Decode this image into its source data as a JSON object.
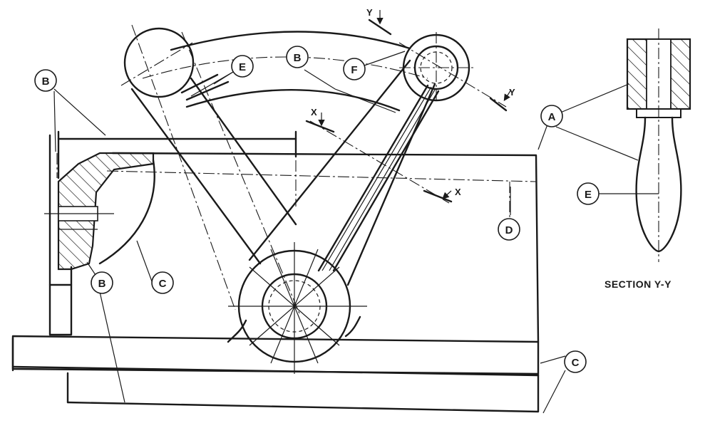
{
  "callouts": {
    "A": "A",
    "B": "B",
    "C": "C",
    "D": "D",
    "E": "E",
    "F": "F"
  },
  "section_marks": {
    "x": "X",
    "y": "Y"
  },
  "caption": "SECTION Y-Y"
}
